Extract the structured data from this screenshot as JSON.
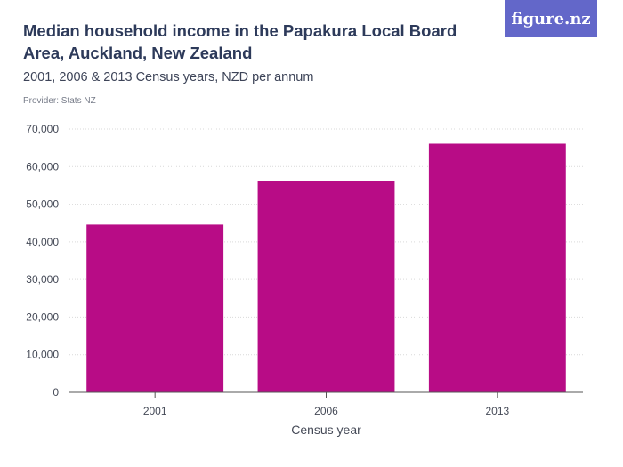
{
  "header": {
    "title": "Median household income in the Papakura Local Board Area, Auckland, New Zealand",
    "subtitle": "2001, 2006 & 2013 Census years, NZD per annum",
    "provider": "Provider: Stats NZ"
  },
  "logo": {
    "text": "figure.nz"
  },
  "colors": {
    "bar": "#b80c86",
    "grid": "#d9d9d9",
    "axis": "#555555",
    "logo_bg": "#6367c9",
    "title": "#2d3a5a"
  },
  "chart_data": {
    "type": "bar",
    "title": "Median household income in the Papakura Local Board Area, Auckland, New Zealand",
    "subtitle": "2001, 2006 & 2013 Census years, NZD per annum",
    "xlabel": "Census year",
    "ylabel": "",
    "categories": [
      "2001",
      "2006",
      "2013"
    ],
    "values": [
      44600,
      56200,
      66100
    ],
    "ylim": [
      0,
      70000
    ],
    "yticks": [
      0,
      10000,
      20000,
      30000,
      40000,
      50000,
      60000,
      70000
    ],
    "ytick_labels": [
      "0",
      "10,000",
      "20,000",
      "30,000",
      "40,000",
      "50,000",
      "60,000",
      "70,000"
    ],
    "grid": true,
    "legend": "none"
  }
}
